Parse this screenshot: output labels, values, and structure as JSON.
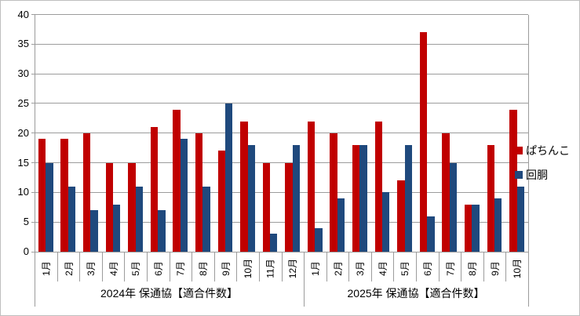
{
  "chart_data": {
    "type": "bar",
    "title": "",
    "y_axis": {
      "min": 0,
      "max": 40,
      "step": 5,
      "tick_labels": [
        "0",
        "5",
        "10",
        "15",
        "20",
        "25",
        "30",
        "35",
        "40"
      ]
    },
    "categories": [
      "1月",
      "2月",
      "3月",
      "4月",
      "5月",
      "6月",
      "7月",
      "8月",
      "9月",
      "10月",
      "11月",
      "12月",
      "1月",
      "2月",
      "3月",
      "4月",
      "5月",
      "6月",
      "7月",
      "8月",
      "9月",
      "10月"
    ],
    "group_labels": [
      "2024年 保通協【適合件数】",
      "2025年 保通協【適合件数】"
    ],
    "group_sizes": [
      12,
      10
    ],
    "series": [
      {
        "name": "ぱちんこ",
        "color": "#C00000",
        "values": [
          19,
          19,
          20,
          15,
          15,
          21,
          24,
          20,
          17,
          22,
          15,
          15,
          22,
          20,
          18,
          22,
          12,
          37,
          20,
          8,
          18,
          24
        ]
      },
      {
        "name": "回胴",
        "color": "#1F497D",
        "values": [
          15,
          11,
          7,
          8,
          11,
          7,
          19,
          11,
          25,
          18,
          3,
          18,
          4,
          9,
          18,
          10,
          18,
          6,
          15,
          8,
          9,
          11
        ]
      }
    ],
    "legend_position": "right",
    "grid": true,
    "colors": {
      "gridline": "#9c9c9c",
      "axis": "#9c9c9c",
      "border": "#bfbfbf",
      "text": "#000000"
    }
  }
}
